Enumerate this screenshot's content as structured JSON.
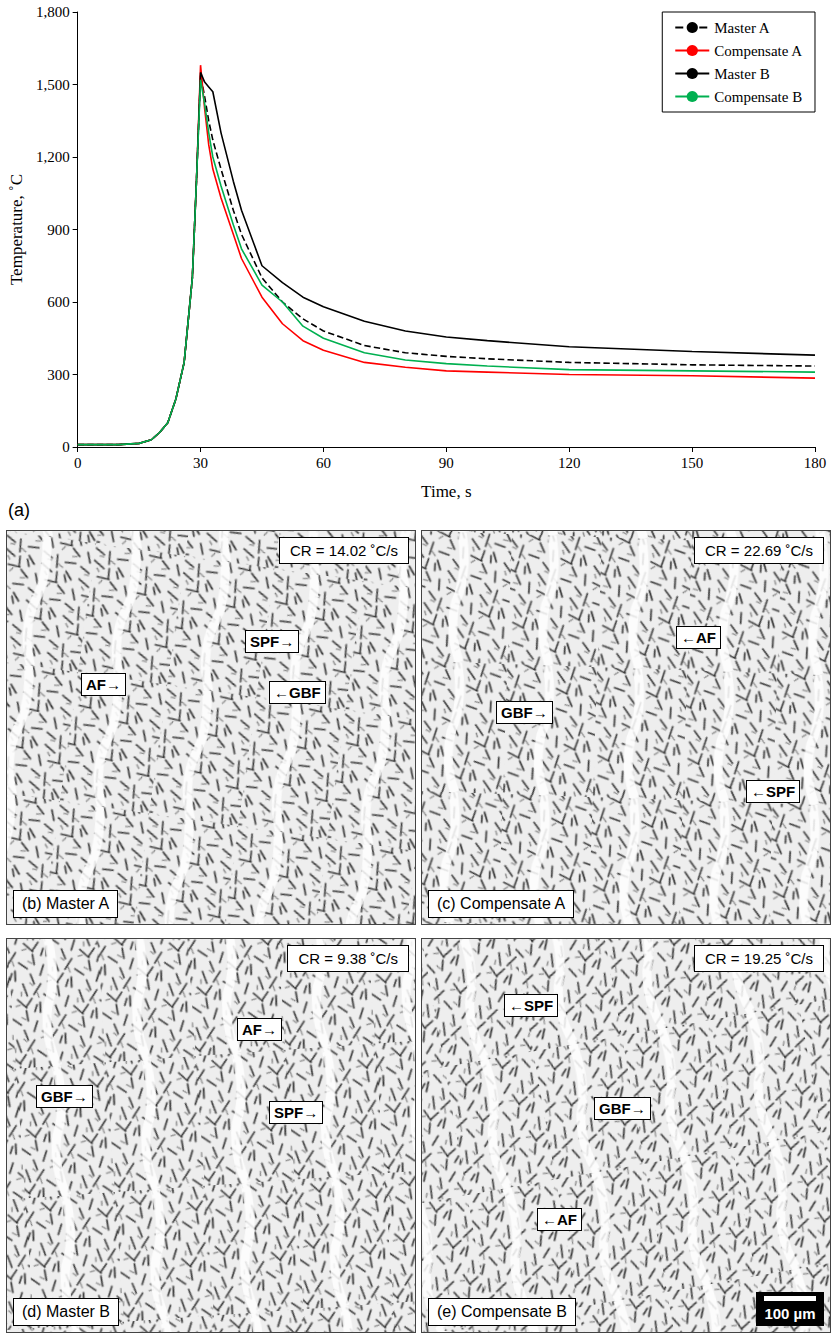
{
  "chart_data": {
    "type": "line",
    "panel": "(a)",
    "x_label": "Time, s",
    "y_label": "Temperature, ˚C",
    "xlim": [
      0,
      180
    ],
    "xticks": [
      0,
      30,
      60,
      90,
      120,
      150,
      180
    ],
    "ylim": [
      0,
      1800
    ],
    "yticks": [
      0,
      300,
      600,
      900,
      1200,
      1500,
      1800
    ],
    "legend": "upper right",
    "grid": false,
    "x": [
      0,
      10,
      15,
      18,
      20,
      22,
      24,
      26,
      28,
      29,
      30,
      31,
      32,
      33,
      35,
      38,
      40,
      45,
      50,
      55,
      60,
      70,
      80,
      90,
      100,
      120,
      150,
      180
    ],
    "series": [
      {
        "name": "Master A",
        "color": "#000000",
        "line_style": "dashed",
        "values": [
          10,
          10,
          15,
          30,
          60,
          100,
          200,
          350,
          700,
          1100,
          1540,
          1450,
          1350,
          1270,
          1150,
          980,
          880,
          700,
          600,
          530,
          480,
          420,
          390,
          375,
          365,
          350,
          340,
          335
        ]
      },
      {
        "name": "Compensate A",
        "color": "#ff0000",
        "line_style": "solid",
        "values": [
          10,
          10,
          15,
          30,
          60,
          100,
          200,
          350,
          700,
          1100,
          1580,
          1400,
          1250,
          1150,
          1030,
          880,
          780,
          620,
          510,
          440,
          400,
          350,
          330,
          315,
          310,
          300,
          295,
          285
        ]
      },
      {
        "name": "Master B",
        "color": "#000000",
        "line_style": "solid",
        "values": [
          10,
          10,
          15,
          30,
          60,
          100,
          200,
          350,
          700,
          1100,
          1550,
          1510,
          1490,
          1470,
          1300,
          1100,
          980,
          750,
          680,
          620,
          580,
          520,
          480,
          455,
          440,
          415,
          395,
          380
        ]
      },
      {
        "name": "Compensate B",
        "color": "#00b050",
        "line_style": "solid",
        "values": [
          10,
          10,
          15,
          30,
          60,
          100,
          200,
          350,
          700,
          1100,
          1520,
          1420,
          1300,
          1200,
          1080,
          920,
          820,
          670,
          600,
          500,
          450,
          390,
          360,
          345,
          335,
          320,
          315,
          310
        ]
      }
    ]
  },
  "micrographs": [
    {
      "caption": "(b) Master A",
      "cooling_rate": "CR = 14.02 ˚C/s",
      "labels": [
        "AF→",
        "SPF→",
        "←GBF"
      ]
    },
    {
      "caption": "(c) Compensate A",
      "cooling_rate": "CR = 22.69 ˚C/s",
      "labels": [
        "←AF",
        "GBF→",
        "←SPF"
      ]
    },
    {
      "caption": "(d) Master B",
      "cooling_rate": "CR = 9.38 ˚C/s",
      "labels": [
        "AF→",
        "GBF→",
        "SPF→"
      ]
    },
    {
      "caption": "(e) Compensate B",
      "cooling_rate": "CR = 19.25 ˚C/s",
      "labels": [
        "←SPF",
        "GBF→",
        "←AF"
      ],
      "scale_bar": "100 µm"
    }
  ]
}
